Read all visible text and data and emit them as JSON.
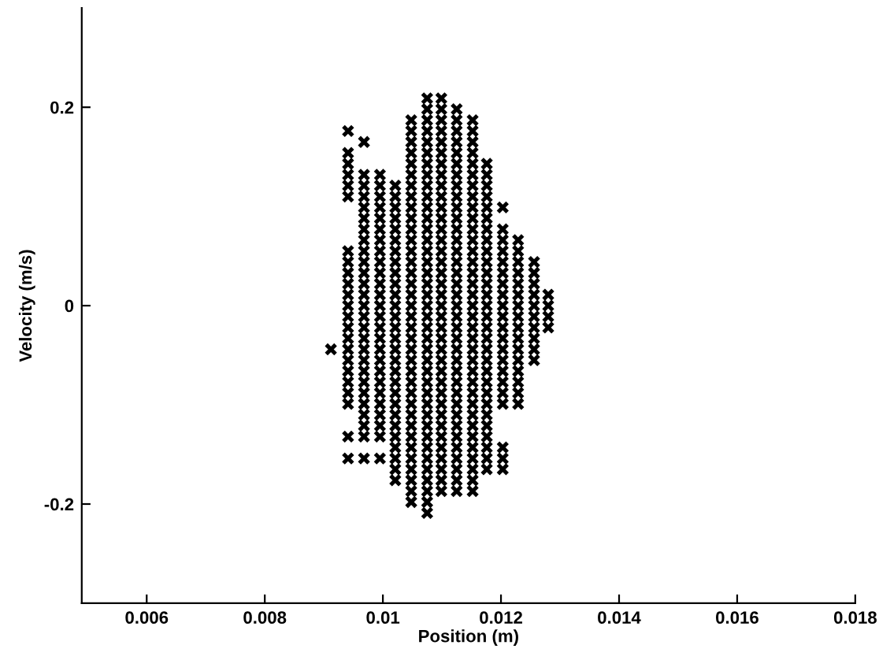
{
  "chart_data": {
    "type": "scatter",
    "xlabel": "Position (m)",
    "ylabel": "Velocity (m/s)",
    "xlim": [
      0.0049,
      0.018
    ],
    "xticks": [
      0.006,
      0.008,
      0.01,
      0.012,
      0.014,
      0.016,
      0.018
    ],
    "ylim": [
      -0.3,
      0.3
    ],
    "yticks": [
      -0.2,
      0,
      0.2
    ],
    "grid": false,
    "legend": false,
    "marker": "cross",
    "series": [
      {
        "color": "#000000",
        "x": [
          0.00912
        ],
        "values": [
          -0.044
        ]
      },
      {
        "color": "#000000",
        "x": [
          0.00941,
          0.00941,
          0.00941,
          0.00941,
          0.00941,
          0.00941,
          0.00941,
          0.00941,
          0.00941,
          0.00941,
          0.00941,
          0.00941,
          0.00941,
          0.00941,
          0.00941,
          0.00941,
          0.00941,
          0.00941,
          0.00941,
          0.00941,
          0.00941,
          0.00941,
          0.00941
        ],
        "values": [
          0.176,
          0.154,
          0.143,
          0.132,
          0.121,
          0.11,
          0.055,
          0.044,
          0.033,
          0.022,
          0.011,
          0,
          -0.011,
          -0.022,
          -0.033,
          -0.044,
          -0.055,
          -0.066,
          -0.077,
          -0.088,
          -0.099,
          -0.132,
          -0.154
        ]
      },
      {
        "color": "#000000",
        "x": [
          0.00968,
          0.00968,
          0.00968,
          0.00968,
          0.00968,
          0.00968,
          0.00968,
          0.00968,
          0.00968,
          0.00968,
          0.00968,
          0.00968,
          0.00968,
          0.00968,
          0.00968,
          0.00968,
          0.00968,
          0.00968,
          0.00968,
          0.00968,
          0.00968,
          0.00968,
          0.00968,
          0.00968,
          0.00968,
          0.00968,
          0.00968
        ],
        "values": [
          0.165,
          0.132,
          0.121,
          0.11,
          0.099,
          0.088,
          0.077,
          0.066,
          0.055,
          0.044,
          0.033,
          0.022,
          0.011,
          0,
          -0.011,
          -0.022,
          -0.033,
          -0.044,
          -0.055,
          -0.066,
          -0.077,
          -0.088,
          -0.099,
          -0.11,
          -0.121,
          -0.132,
          -0.154
        ]
      },
      {
        "color": "#000000",
        "x": [
          0.00995,
          0.00995,
          0.00995,
          0.00995,
          0.00995,
          0.00995,
          0.00995,
          0.00995,
          0.00995,
          0.00995,
          0.00995,
          0.00995,
          0.00995,
          0.00995,
          0.00995,
          0.00995,
          0.00995,
          0.00995,
          0.00995,
          0.00995,
          0.00995,
          0.00995,
          0.00995,
          0.00995,
          0.00995,
          0.00995
        ],
        "values": [
          0.132,
          0.121,
          0.11,
          0.099,
          0.088,
          0.077,
          0.066,
          0.055,
          0.044,
          0.033,
          0.022,
          0.011,
          0,
          -0.011,
          -0.022,
          -0.033,
          -0.044,
          -0.055,
          -0.066,
          -0.077,
          -0.088,
          -0.099,
          -0.11,
          -0.121,
          -0.132,
          -0.154
        ]
      },
      {
        "color": "#000000",
        "x": [
          0.01021,
          0.01021,
          0.01021,
          0.01021,
          0.01021,
          0.01021,
          0.01021,
          0.01021,
          0.01021,
          0.01021,
          0.01021,
          0.01021,
          0.01021,
          0.01021,
          0.01021,
          0.01021,
          0.01021,
          0.01021,
          0.01021,
          0.01021,
          0.01021,
          0.01021,
          0.01021,
          0.01021,
          0.01021,
          0.01021,
          0.01021,
          0.01021
        ],
        "values": [
          0.121,
          0.11,
          0.099,
          0.088,
          0.077,
          0.066,
          0.055,
          0.044,
          0.033,
          0.022,
          0.011,
          0,
          -0.011,
          -0.022,
          -0.033,
          -0.044,
          -0.055,
          -0.066,
          -0.077,
          -0.088,
          -0.099,
          -0.11,
          -0.121,
          -0.132,
          -0.143,
          -0.154,
          -0.165,
          -0.176
        ]
      },
      {
        "color": "#000000",
        "x": [
          0.01048,
          0.01048,
          0.01048,
          0.01048,
          0.01048,
          0.01048,
          0.01048,
          0.01048,
          0.01048,
          0.01048,
          0.01048,
          0.01048,
          0.01048,
          0.01048,
          0.01048,
          0.01048,
          0.01048,
          0.01048,
          0.01048,
          0.01048,
          0.01048,
          0.01048,
          0.01048,
          0.01048,
          0.01048,
          0.01048,
          0.01048,
          0.01048,
          0.01048,
          0.01048,
          0.01048,
          0.01048,
          0.01048,
          0.01048,
          0.01048,
          0.01048
        ],
        "values": [
          0.187,
          0.176,
          0.165,
          0.154,
          0.143,
          0.132,
          0.121,
          0.11,
          0.099,
          0.088,
          0.077,
          0.066,
          0.055,
          0.044,
          0.033,
          0.022,
          0.011,
          0,
          -0.011,
          -0.022,
          -0.033,
          -0.044,
          -0.055,
          -0.066,
          -0.077,
          -0.088,
          -0.099,
          -0.11,
          -0.121,
          -0.132,
          -0.143,
          -0.154,
          -0.165,
          -0.176,
          -0.187,
          -0.198
        ]
      },
      {
        "color": "#000000",
        "x": [
          0.01075,
          0.01075,
          0.01075,
          0.01075,
          0.01075,
          0.01075,
          0.01075,
          0.01075,
          0.01075,
          0.01075,
          0.01075,
          0.01075,
          0.01075,
          0.01075,
          0.01075,
          0.01075,
          0.01075,
          0.01075,
          0.01075,
          0.01075,
          0.01075,
          0.01075,
          0.01075,
          0.01075,
          0.01075,
          0.01075,
          0.01075,
          0.01075,
          0.01075,
          0.01075,
          0.01075,
          0.01075,
          0.01075,
          0.01075,
          0.01075,
          0.01075,
          0.01075,
          0.01075,
          0.01075
        ],
        "values": [
          0.209,
          0.198,
          0.187,
          0.176,
          0.165,
          0.154,
          0.143,
          0.132,
          0.121,
          0.11,
          0.099,
          0.088,
          0.077,
          0.066,
          0.055,
          0.044,
          0.033,
          0.022,
          0.011,
          0,
          -0.011,
          -0.022,
          -0.033,
          -0.044,
          -0.055,
          -0.066,
          -0.077,
          -0.088,
          -0.099,
          -0.11,
          -0.121,
          -0.132,
          -0.143,
          -0.154,
          -0.165,
          -0.176,
          -0.187,
          -0.198,
          -0.209
        ]
      },
      {
        "color": "#000000",
        "x": [
          0.01099,
          0.01099,
          0.01099,
          0.01099,
          0.01099,
          0.01099,
          0.01099,
          0.01099,
          0.01099,
          0.01099,
          0.01099,
          0.01099,
          0.01099,
          0.01099,
          0.01099,
          0.01099,
          0.01099,
          0.01099,
          0.01099,
          0.01099,
          0.01099,
          0.01099,
          0.01099,
          0.01099,
          0.01099,
          0.01099,
          0.01099,
          0.01099,
          0.01099,
          0.01099,
          0.01099,
          0.01099,
          0.01099,
          0.01099,
          0.01099,
          0.01099,
          0.01099
        ],
        "values": [
          0.209,
          0.198,
          0.187,
          0.176,
          0.165,
          0.154,
          0.143,
          0.132,
          0.121,
          0.11,
          0.099,
          0.088,
          0.077,
          0.066,
          0.055,
          0.044,
          0.033,
          0.022,
          0.011,
          0,
          -0.011,
          -0.022,
          -0.033,
          -0.044,
          -0.055,
          -0.066,
          -0.077,
          -0.088,
          -0.099,
          -0.11,
          -0.121,
          -0.132,
          -0.143,
          -0.154,
          -0.165,
          -0.176,
          -0.187
        ]
      },
      {
        "color": "#000000",
        "x": [
          0.01125,
          0.01125,
          0.01125,
          0.01125,
          0.01125,
          0.01125,
          0.01125,
          0.01125,
          0.01125,
          0.01125,
          0.01125,
          0.01125,
          0.01125,
          0.01125,
          0.01125,
          0.01125,
          0.01125,
          0.01125,
          0.01125,
          0.01125,
          0.01125,
          0.01125,
          0.01125,
          0.01125,
          0.01125,
          0.01125,
          0.01125,
          0.01125,
          0.01125,
          0.01125,
          0.01125,
          0.01125,
          0.01125,
          0.01125,
          0.01125,
          0.01125
        ],
        "values": [
          0.198,
          0.187,
          0.176,
          0.165,
          0.154,
          0.143,
          0.132,
          0.121,
          0.11,
          0.099,
          0.088,
          0.077,
          0.066,
          0.055,
          0.044,
          0.033,
          0.022,
          0.011,
          0,
          -0.011,
          -0.022,
          -0.033,
          -0.044,
          -0.055,
          -0.066,
          -0.077,
          -0.088,
          -0.099,
          -0.11,
          -0.121,
          -0.132,
          -0.143,
          -0.154,
          -0.165,
          -0.176,
          -0.187
        ]
      },
      {
        "color": "#000000",
        "x": [
          0.01152,
          0.01152,
          0.01152,
          0.01152,
          0.01152,
          0.01152,
          0.01152,
          0.01152,
          0.01152,
          0.01152,
          0.01152,
          0.01152,
          0.01152,
          0.01152,
          0.01152,
          0.01152,
          0.01152,
          0.01152,
          0.01152,
          0.01152,
          0.01152,
          0.01152,
          0.01152,
          0.01152,
          0.01152,
          0.01152,
          0.01152,
          0.01152,
          0.01152,
          0.01152,
          0.01152,
          0.01152,
          0.01152,
          0.01152,
          0.01152
        ],
        "values": [
          0.187,
          0.176,
          0.165,
          0.154,
          0.143,
          0.132,
          0.121,
          0.11,
          0.099,
          0.088,
          0.077,
          0.066,
          0.055,
          0.044,
          0.033,
          0.022,
          0.011,
          0,
          -0.011,
          -0.022,
          -0.033,
          -0.044,
          -0.055,
          -0.066,
          -0.077,
          -0.088,
          -0.099,
          -0.11,
          -0.121,
          -0.132,
          -0.143,
          -0.154,
          -0.165,
          -0.176,
          -0.187
        ]
      },
      {
        "color": "#000000",
        "x": [
          0.01176,
          0.01176,
          0.01176,
          0.01176,
          0.01176,
          0.01176,
          0.01176,
          0.01176,
          0.01176,
          0.01176,
          0.01176,
          0.01176,
          0.01176,
          0.01176,
          0.01176,
          0.01176,
          0.01176,
          0.01176,
          0.01176,
          0.01176,
          0.01176,
          0.01176,
          0.01176,
          0.01176,
          0.01176,
          0.01176,
          0.01176,
          0.01176,
          0.01176
        ],
        "values": [
          0.143,
          0.132,
          0.121,
          0.11,
          0.099,
          0.088,
          0.077,
          0.066,
          0.055,
          0.044,
          0.033,
          0.022,
          0.011,
          0,
          -0.011,
          -0.022,
          -0.033,
          -0.044,
          -0.055,
          -0.066,
          -0.077,
          -0.088,
          -0.099,
          -0.11,
          -0.121,
          -0.132,
          -0.143,
          -0.154,
          -0.165
        ]
      },
      {
        "color": "#000000",
        "x": [
          0.01203,
          0.01203,
          0.01203,
          0.01203,
          0.01203,
          0.01203,
          0.01203,
          0.01203,
          0.01203,
          0.01203,
          0.01203,
          0.01203,
          0.01203,
          0.01203,
          0.01203,
          0.01203,
          0.01203,
          0.01203,
          0.01203,
          0.01203,
          0.01203
        ],
        "values": [
          0.099,
          0.077,
          0.066,
          0.055,
          0.044,
          0.033,
          0.022,
          0.011,
          0,
          -0.011,
          -0.022,
          -0.033,
          -0.044,
          -0.055,
          -0.066,
          -0.077,
          -0.088,
          -0.099,
          -0.143,
          -0.154,
          -0.165
        ]
      },
      {
        "color": "#000000",
        "x": [
          0.01229,
          0.01229,
          0.01229,
          0.01229,
          0.01229,
          0.01229,
          0.01229,
          0.01229,
          0.01229,
          0.01229,
          0.01229,
          0.01229,
          0.01229,
          0.01229,
          0.01229,
          0.01229
        ],
        "values": [
          0.066,
          0.055,
          0.044,
          0.033,
          0.022,
          0.011,
          0,
          -0.011,
          -0.022,
          -0.033,
          -0.044,
          -0.055,
          -0.066,
          -0.077,
          -0.088,
          -0.099
        ]
      },
      {
        "color": "#000000",
        "x": [
          0.01256,
          0.01256,
          0.01256,
          0.01256,
          0.01256,
          0.01256,
          0.01256,
          0.01256,
          0.01256,
          0.01256
        ],
        "values": [
          0.044,
          0.033,
          0.022,
          0.011,
          0,
          -0.011,
          -0.022,
          -0.033,
          -0.044,
          -0.055
        ]
      },
      {
        "color": "#000000",
        "x": [
          0.0128,
          0.0128,
          0.0128,
          0.0128
        ],
        "values": [
          0.011,
          0,
          -0.011,
          -0.022
        ]
      }
    ]
  }
}
